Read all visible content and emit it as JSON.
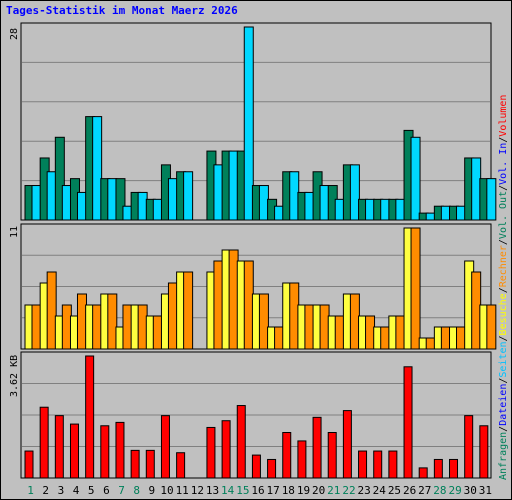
{
  "chart_data": {
    "type": "bar",
    "title": "Tages-Statistik im Monat Maerz 2026",
    "categories": [
      "1",
      "2",
      "3",
      "4",
      "5",
      "6",
      "7",
      "8",
      "9",
      "10",
      "11",
      "12",
      "13",
      "14",
      "15",
      "16",
      "17",
      "18",
      "19",
      "20",
      "21",
      "22",
      "23",
      "24",
      "25",
      "26",
      "27",
      "28",
      "29",
      "30",
      "31"
    ],
    "weekend_categories": [
      "1",
      "7",
      "8",
      "14",
      "15",
      "21",
      "22",
      "28",
      "29"
    ],
    "panels": [
      {
        "id": "top",
        "ymax_label": "28",
        "ymax": 28,
        "series": [
          {
            "name": "Anfragen",
            "color": "#00805a",
            "values": [
              5,
              9,
              12,
              6,
              15,
              6,
              6,
              4,
              3,
              8,
              7,
              0,
              10,
              10,
              10,
              5,
              3,
              7,
              4,
              7,
              5,
              8,
              3,
              3,
              3,
              13,
              1,
              2,
              2,
              9,
              6
            ]
          },
          {
            "name": "Dateien",
            "color": "#00d8ff",
            "values": [
              5,
              7,
              5,
              4,
              15,
              6,
              2,
              4,
              3,
              6,
              7,
              0,
              8,
              10,
              28,
              5,
              2,
              7,
              4,
              5,
              3,
              8,
              3,
              3,
              3,
              12,
              1,
              2,
              2,
              9,
              6
            ]
          }
        ]
      },
      {
        "id": "middle",
        "ymax_label": "11",
        "ymax": 11,
        "series": [
          {
            "name": "Besuche",
            "color": "#ffff40",
            "values": [
              4,
              6,
              3,
              3,
              4,
              5,
              2,
              4,
              3,
              5,
              7,
              0,
              7,
              9,
              8,
              5,
              2,
              6,
              4,
              4,
              3,
              5,
              3,
              2,
              3,
              11,
              1,
              2,
              2,
              8,
              4
            ]
          },
          {
            "name": "Rechner",
            "color": "#ff8c00",
            "values": [
              4,
              7,
              4,
              5,
              4,
              5,
              4,
              4,
              3,
              6,
              7,
              0,
              8,
              9,
              8,
              5,
              2,
              6,
              4,
              4,
              3,
              5,
              3,
              2,
              3,
              11,
              1,
              2,
              2,
              7,
              4
            ]
          }
        ]
      },
      {
        "id": "bottom",
        "ymax_label": "3.62 KB",
        "ymax": 3.62,
        "series": [
          {
            "name": "Volumen",
            "color": "#ff0000",
            "values": [
              0.8,
              2.1,
              1.85,
              1.6,
              3.62,
              1.55,
              1.65,
              0.82,
              0.82,
              1.85,
              0.75,
              0,
              1.5,
              1.7,
              2.15,
              0.68,
              0.55,
              1.35,
              1.1,
              1.8,
              1.35,
              2.0,
              0.8,
              0.8,
              0.8,
              3.3,
              0.3,
              0.55,
              0.55,
              1.85,
              1.55
            ]
          }
        ]
      }
    ],
    "legend_right": [
      {
        "text": "Anfragen",
        "color": "#00805a"
      },
      {
        "text": "Dateien",
        "color": "#0000ff"
      },
      {
        "text": "Seiten",
        "color": "#00c0ff"
      },
      {
        "text": "Besuche",
        "color": "#ffff00"
      },
      {
        "text": "Rechner",
        "color": "#ff8c00"
      },
      {
        "text": "Vol. Out",
        "color": "#00805a"
      },
      {
        "text": "Vol. In",
        "color": "#0000ff"
      },
      {
        "text": "Volumen",
        "color": "#ff0000"
      }
    ],
    "legend_separator": "/",
    "grid": true
  },
  "colors": {
    "background": "#c0c0c0",
    "grid": "#808080",
    "weekday_label": "#000000",
    "weekend_label": "#00805a"
  }
}
